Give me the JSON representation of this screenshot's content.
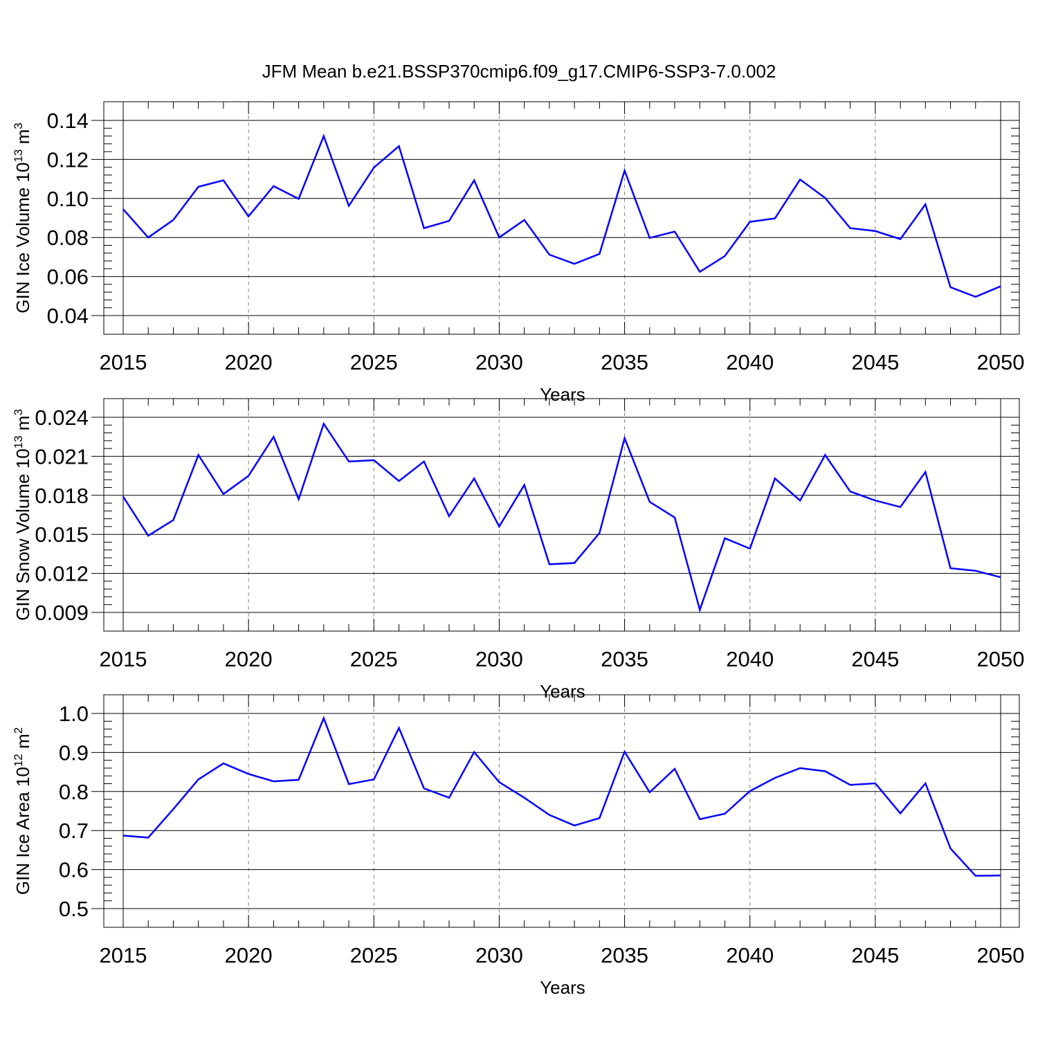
{
  "figure_title": "JFM Mean b.e21.BSSP370cmip6.f09_g17.CMIP6-SSP3-7.0.002",
  "colors": {
    "line": "#0000ff",
    "axis": "#000000",
    "grid": "#808080",
    "background": "#ffffff"
  },
  "chart_data": [
    {
      "type": "line",
      "title": "",
      "xlabel": "Years",
      "ylabel": "GIN Ice Volume 10",
      "ylabel_exp": "13",
      "ylabel_unit": " m",
      "ylabel_unit_exp": "3",
      "xlim": [
        2015,
        2050
      ],
      "ylim": [
        0.04,
        0.14
      ],
      "xticks": [
        2015,
        2020,
        2025,
        2030,
        2035,
        2040,
        2045,
        2050
      ],
      "xtick_labels": [
        "2015",
        "2020",
        "2025",
        "2030",
        "2035",
        "2040",
        "2045",
        "2050"
      ],
      "yticks": [
        0.04,
        0.06,
        0.08,
        0.1,
        0.12,
        0.14
      ],
      "ytick_labels": [
        "0.04",
        "0.06",
        "0.08",
        "0.10",
        "0.12",
        "0.14"
      ],
      "grid": "vertical dashed at major x ticks",
      "x": [
        2015,
        2016,
        2017,
        2018,
        2019,
        2020,
        2021,
        2022,
        2023,
        2024,
        2025,
        2026,
        2027,
        2028,
        2029,
        2030,
        2031,
        2032,
        2033,
        2034,
        2035,
        2036,
        2037,
        2038,
        2039,
        2040,
        2041,
        2042,
        2043,
        2044,
        2045,
        2046,
        2047,
        2048,
        2049,
        2050
      ],
      "series": [
        {
          "values": [
            0.0945,
            0.08,
            0.089,
            0.106,
            0.1093,
            0.0908,
            0.1063,
            0.0998,
            0.132,
            0.0962,
            0.1158,
            0.1268,
            0.0848,
            0.0885,
            0.1093,
            0.08,
            0.089,
            0.0712,
            0.0665,
            0.0716,
            0.1143,
            0.0798,
            0.083,
            0.0624,
            0.0705,
            0.088,
            0.0898,
            0.1097,
            0.1003,
            0.0848,
            0.0833,
            0.0792,
            0.097,
            0.0545,
            0.0496,
            0.055
          ]
        }
      ]
    },
    {
      "type": "line",
      "title": "",
      "xlabel": "Years",
      "ylabel": "GIN Snow Volume 10",
      "ylabel_exp": "13",
      "ylabel_unit": " m",
      "ylabel_unit_exp": "3",
      "xlim": [
        2015,
        2050
      ],
      "ylim": [
        0.009,
        0.024
      ],
      "xticks": [
        2015,
        2020,
        2025,
        2030,
        2035,
        2040,
        2045,
        2050
      ],
      "xtick_labels": [
        "2015",
        "2020",
        "2025",
        "2030",
        "2035",
        "2040",
        "2045",
        "2050"
      ],
      "yticks": [
        0.009,
        0.012,
        0.015,
        0.018,
        0.021,
        0.024
      ],
      "ytick_labels": [
        "0.009",
        "0.012",
        "0.015",
        "0.018",
        "0.021",
        "0.024"
      ],
      "grid": "vertical dashed at major x ticks",
      "x": [
        2015,
        2016,
        2017,
        2018,
        2019,
        2020,
        2021,
        2022,
        2023,
        2024,
        2025,
        2026,
        2027,
        2028,
        2029,
        2030,
        2031,
        2032,
        2033,
        2034,
        2035,
        2036,
        2037,
        2038,
        2039,
        2040,
        2041,
        2042,
        2043,
        2044,
        2045,
        2046,
        2047,
        2048,
        2049,
        2050
      ],
      "series": [
        {
          "values": [
            0.0179,
            0.0149,
            0.0161,
            0.0211,
            0.0181,
            0.0195,
            0.0225,
            0.0177,
            0.0235,
            0.0206,
            0.0207,
            0.0191,
            0.0206,
            0.0164,
            0.0193,
            0.0156,
            0.0188,
            0.0127,
            0.0128,
            0.0151,
            0.0224,
            0.0175,
            0.0163,
            0.0092,
            0.0147,
            0.0139,
            0.0193,
            0.0176,
            0.0211,
            0.0183,
            0.0176,
            0.0171,
            0.0198,
            0.0124,
            0.0122,
            0.0117
          ]
        }
      ]
    },
    {
      "type": "line",
      "title": "",
      "xlabel": "Years",
      "ylabel": "GIN Ice Area 10",
      "ylabel_exp": "12",
      "ylabel_unit": " m",
      "ylabel_unit_exp": "2",
      "xlim": [
        2015,
        2050
      ],
      "ylim": [
        0.5,
        1.0
      ],
      "xticks": [
        2015,
        2020,
        2025,
        2030,
        2035,
        2040,
        2045,
        2050
      ],
      "xtick_labels": [
        "2015",
        "2020",
        "2025",
        "2030",
        "2035",
        "2040",
        "2045",
        "2050"
      ],
      "yticks": [
        0.5,
        0.6,
        0.7,
        0.8,
        0.9,
        1.0
      ],
      "ytick_labels": [
        "0.5",
        "0.6",
        "0.7",
        "0.8",
        "0.9",
        "1.0"
      ],
      "grid": "vertical dashed at major x ticks",
      "x": [
        2015,
        2016,
        2017,
        2018,
        2019,
        2020,
        2021,
        2022,
        2023,
        2024,
        2025,
        2026,
        2027,
        2028,
        2029,
        2030,
        2031,
        2032,
        2033,
        2034,
        2035,
        2036,
        2037,
        2038,
        2039,
        2040,
        2041,
        2042,
        2043,
        2044,
        2045,
        2046,
        2047,
        2048,
        2049,
        2050
      ],
      "series": [
        {
          "values": [
            0.687,
            0.682,
            0.755,
            0.831,
            0.872,
            0.845,
            0.826,
            0.83,
            0.988,
            0.819,
            0.831,
            0.963,
            0.808,
            0.784,
            0.901,
            0.824,
            0.784,
            0.74,
            0.713,
            0.732,
            0.902,
            0.798,
            0.858,
            0.729,
            0.743,
            0.801,
            0.835,
            0.86,
            0.852,
            0.817,
            0.821,
            0.744,
            0.821,
            0.654,
            0.584,
            0.585
          ]
        }
      ]
    }
  ]
}
